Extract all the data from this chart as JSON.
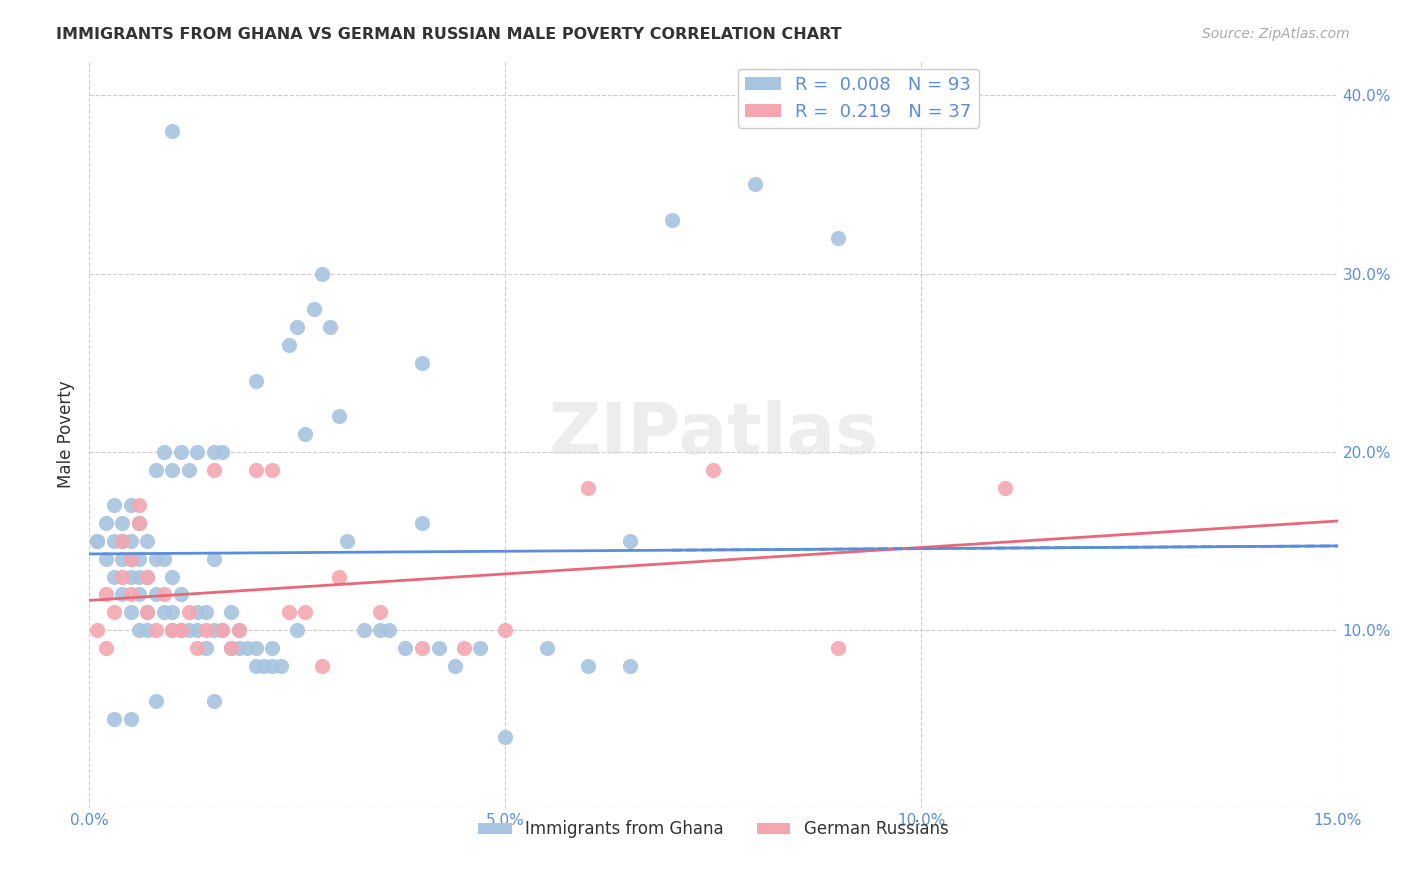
{
  "title": "IMMIGRANTS FROM GHANA VS GERMAN RUSSIAN MALE POVERTY CORRELATION CHART",
  "source": "Source: ZipAtlas.com",
  "xlabel_label": "",
  "ylabel_label": "Male Poverty",
  "xlim": [
    0.0,
    0.15
  ],
  "ylim": [
    0.0,
    0.42
  ],
  "xticks": [
    0.0,
    0.05,
    0.1,
    0.15
  ],
  "xticklabels": [
    "0.0%",
    "5.0%",
    "10.0%",
    "15.0%"
  ],
  "yticks": [
    0.0,
    0.1,
    0.2,
    0.3,
    0.4
  ],
  "yticklabels": [
    "",
    "10.0%",
    "20.0%",
    "30.0%",
    "40.0%"
  ],
  "ghana_color": "#a8c4e0",
  "german_russian_color": "#f4a7b0",
  "ghana_R": 0.008,
  "ghana_N": 93,
  "german_russian_R": 0.219,
  "german_russian_N": 37,
  "ghana_line_color": "#5b8dd9",
  "german_russian_line_color": "#e8687a",
  "watermark": "ZIPatlas",
  "ghana_scatter_x": [
    0.001,
    0.002,
    0.002,
    0.003,
    0.003,
    0.003,
    0.004,
    0.004,
    0.004,
    0.004,
    0.005,
    0.005,
    0.005,
    0.005,
    0.005,
    0.006,
    0.006,
    0.006,
    0.006,
    0.006,
    0.007,
    0.007,
    0.007,
    0.007,
    0.008,
    0.008,
    0.008,
    0.009,
    0.009,
    0.009,
    0.01,
    0.01,
    0.01,
    0.01,
    0.011,
    0.011,
    0.011,
    0.012,
    0.012,
    0.013,
    0.013,
    0.013,
    0.014,
    0.014,
    0.015,
    0.015,
    0.015,
    0.016,
    0.016,
    0.017,
    0.017,
    0.018,
    0.018,
    0.019,
    0.02,
    0.02,
    0.021,
    0.022,
    0.022,
    0.023,
    0.024,
    0.025,
    0.026,
    0.027,
    0.028,
    0.029,
    0.03,
    0.031,
    0.033,
    0.035,
    0.036,
    0.038,
    0.04,
    0.042,
    0.044,
    0.047,
    0.05,
    0.055,
    0.06,
    0.065,
    0.07,
    0.08,
    0.09,
    0.065,
    0.04,
    0.02,
    0.01,
    0.025,
    0.015,
    0.008,
    0.005,
    0.003,
    0.001
  ],
  "ghana_scatter_y": [
    0.15,
    0.14,
    0.16,
    0.13,
    0.15,
    0.17,
    0.12,
    0.14,
    0.15,
    0.16,
    0.11,
    0.13,
    0.14,
    0.15,
    0.17,
    0.1,
    0.12,
    0.13,
    0.14,
    0.16,
    0.1,
    0.11,
    0.13,
    0.15,
    0.12,
    0.14,
    0.19,
    0.11,
    0.14,
    0.2,
    0.1,
    0.11,
    0.13,
    0.19,
    0.1,
    0.12,
    0.2,
    0.1,
    0.19,
    0.1,
    0.11,
    0.2,
    0.09,
    0.11,
    0.1,
    0.14,
    0.2,
    0.1,
    0.2,
    0.09,
    0.11,
    0.09,
    0.1,
    0.09,
    0.08,
    0.09,
    0.08,
    0.08,
    0.09,
    0.08,
    0.26,
    0.27,
    0.21,
    0.28,
    0.3,
    0.27,
    0.22,
    0.15,
    0.1,
    0.1,
    0.1,
    0.09,
    0.16,
    0.09,
    0.08,
    0.09,
    0.04,
    0.09,
    0.08,
    0.08,
    0.33,
    0.35,
    0.32,
    0.15,
    0.25,
    0.24,
    0.38,
    0.1,
    0.06,
    0.06,
    0.05,
    0.05,
    0.15
  ],
  "german_scatter_x": [
    0.001,
    0.002,
    0.002,
    0.003,
    0.004,
    0.004,
    0.005,
    0.005,
    0.006,
    0.006,
    0.007,
    0.007,
    0.008,
    0.009,
    0.01,
    0.011,
    0.012,
    0.013,
    0.014,
    0.015,
    0.016,
    0.017,
    0.018,
    0.02,
    0.022,
    0.024,
    0.026,
    0.028,
    0.03,
    0.035,
    0.04,
    0.045,
    0.05,
    0.06,
    0.075,
    0.09,
    0.11
  ],
  "german_scatter_y": [
    0.1,
    0.12,
    0.09,
    0.11,
    0.13,
    0.15,
    0.12,
    0.14,
    0.17,
    0.16,
    0.11,
    0.13,
    0.1,
    0.12,
    0.1,
    0.1,
    0.11,
    0.09,
    0.1,
    0.19,
    0.1,
    0.09,
    0.1,
    0.19,
    0.19,
    0.11,
    0.11,
    0.08,
    0.13,
    0.11,
    0.09,
    0.09,
    0.1,
    0.18,
    0.19,
    0.09,
    0.18
  ]
}
